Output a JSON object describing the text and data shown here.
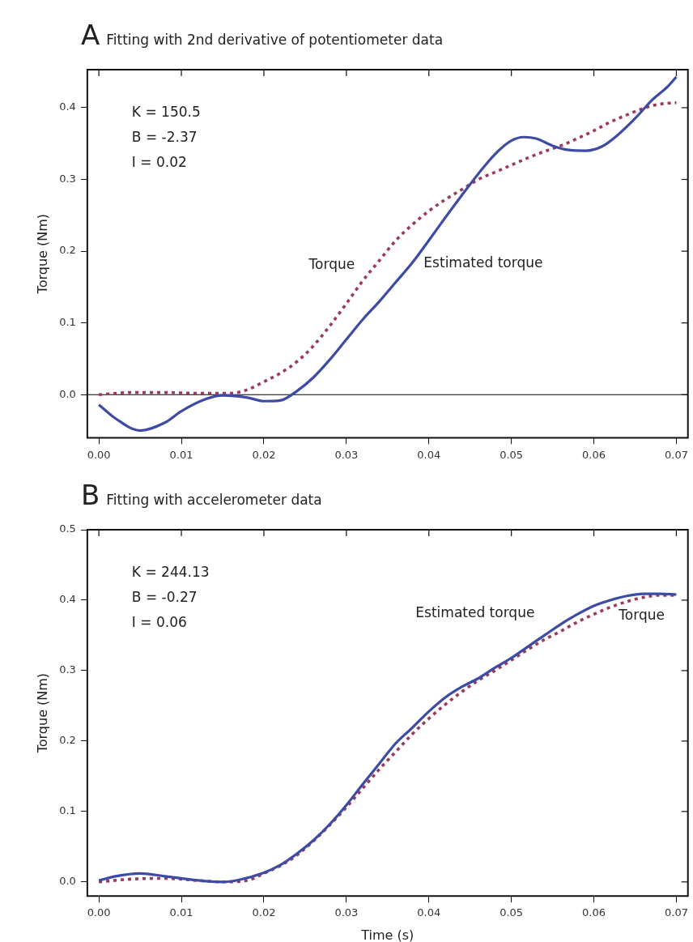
{
  "chart_data": [
    {
      "type": "line",
      "title": "A",
      "subtitle": "Fitting with 2nd derivative of potentiometer data",
      "ylabel": "Torque (Nm)",
      "annotations": [
        "K = 150.5",
        "B = -2.37",
        "I = 0.02"
      ],
      "xlim": [
        -0.0014,
        0.0714
      ],
      "xticks": [
        {
          "value": 0,
          "label": "0.00"
        },
        0.01,
        0.02,
        0.03,
        0.04,
        0.05,
        0.06,
        0.07
      ],
      "ylim": [
        -0.06,
        0.453
      ],
      "yticks": [
        {
          "value": 0,
          "label": "0.0"
        },
        0.1,
        0.2,
        0.3,
        0.4
      ],
      "grid": false,
      "legend": false,
      "marker": "none",
      "ref_lines": [
        {
          "axis": "y",
          "value": 0,
          "color": "#000000"
        }
      ],
      "series": [
        {
          "name": "Estimated torque",
          "color": "#3d4aa6",
          "line_style": "solid",
          "x": [
            0,
            0.002,
            0.005,
            0.008,
            0.01,
            0.013,
            0.015,
            0.018,
            0.02,
            0.022,
            0.024,
            0.026,
            0.028,
            0.03,
            0.032,
            0.034,
            0.036,
            0.038,
            0.04,
            0.042,
            0.044,
            0.046,
            0.048,
            0.05,
            0.0515,
            0.053,
            0.055,
            0.057,
            0.059,
            0.061,
            0.063,
            0.065,
            0.067,
            0.069,
            0.07
          ],
          "values": [
            -0.014,
            -0.033,
            -0.05,
            -0.039,
            -0.023,
            -0.006,
            -0.001,
            -0.004,
            -0.009,
            -0.008,
            0.005,
            0.024,
            0.049,
            0.077,
            0.105,
            0.13,
            0.157,
            0.184,
            0.215,
            0.247,
            0.278,
            0.308,
            0.335,
            0.354,
            0.359,
            0.357,
            0.347,
            0.341,
            0.34,
            0.346,
            0.363,
            0.385,
            0.41,
            0.43,
            0.443
          ]
        },
        {
          "name": "Torque",
          "color": "#9a3a5c",
          "line_style": "dotted",
          "x": [
            0,
            0.004,
            0.008,
            0.012,
            0.016,
            0.018,
            0.02,
            0.022,
            0.024,
            0.026,
            0.028,
            0.03,
            0.032,
            0.034,
            0.036,
            0.038,
            0.04,
            0.042,
            0.044,
            0.046,
            0.048,
            0.05,
            0.052,
            0.054,
            0.056,
            0.058,
            0.06,
            0.062,
            0.064,
            0.066,
            0.068,
            0.07
          ],
          "values": [
            0,
            0.003,
            0.003,
            0.002,
            0.002,
            0.007,
            0.018,
            0.03,
            0.046,
            0.068,
            0.096,
            0.127,
            0.159,
            0.187,
            0.215,
            0.237,
            0.256,
            0.272,
            0.286,
            0.3,
            0.31,
            0.32,
            0.33,
            0.339,
            0.347,
            0.357,
            0.368,
            0.38,
            0.39,
            0.399,
            0.405,
            0.407
          ]
        }
      ]
    },
    {
      "type": "line",
      "title": "B",
      "subtitle": "Fitting with accelerometer data",
      "xlabel": "Time (s)",
      "ylabel": "Torque (Nm)",
      "annotations": [
        "K = 244.13",
        "B = -0.27",
        "I = 0.06"
      ],
      "xlim": [
        -0.0014,
        0.0714
      ],
      "xticks": [
        {
          "value": 0,
          "label": "0.00"
        },
        0.01,
        0.02,
        0.03,
        0.04,
        0.05,
        0.06,
        0.07
      ],
      "ylim": [
        -0.02,
        0.5
      ],
      "yticks": [
        {
          "value": 0,
          "label": "0.0"
        },
        0.1,
        0.2,
        0.3,
        0.4,
        0.5
      ],
      "grid": false,
      "legend": false,
      "marker": "none",
      "series": [
        {
          "name": "Estimated torque",
          "color": "#3d4aa6",
          "line_style": "solid",
          "x": [
            0,
            0.002,
            0.005,
            0.008,
            0.01,
            0.013,
            0.015,
            0.017,
            0.02,
            0.022,
            0.024,
            0.026,
            0.028,
            0.03,
            0.032,
            0.034,
            0.036,
            0.038,
            0.04,
            0.042,
            0.044,
            0.046,
            0.048,
            0.05,
            0.052,
            0.054,
            0.056,
            0.058,
            0.06,
            0.062,
            0.064,
            0.066,
            0.068,
            0.07
          ],
          "values": [
            0.002,
            0.008,
            0.012,
            0.008,
            0.005,
            0.001,
            0,
            0.003,
            0.013,
            0.024,
            0.04,
            0.059,
            0.082,
            0.109,
            0.139,
            0.168,
            0.197,
            0.219,
            0.242,
            0.262,
            0.277,
            0.289,
            0.304,
            0.318,
            0.334,
            0.35,
            0.366,
            0.38,
            0.392,
            0.4,
            0.406,
            0.409,
            0.409,
            0.408
          ]
        },
        {
          "name": "Torque",
          "color": "#9a3a5c",
          "line_style": "dotted",
          "x": [
            0,
            0.004,
            0.008,
            0.012,
            0.015,
            0.018,
            0.02,
            0.022,
            0.024,
            0.026,
            0.028,
            0.03,
            0.032,
            0.034,
            0.036,
            0.038,
            0.04,
            0.042,
            0.044,
            0.046,
            0.048,
            0.05,
            0.052,
            0.054,
            0.056,
            0.058,
            0.06,
            0.062,
            0.064,
            0.066,
            0.068,
            0.07
          ],
          "values": [
            0,
            0.004,
            0.005,
            0.002,
            0,
            0.002,
            0.012,
            0.023,
            0.038,
            0.058,
            0.081,
            0.106,
            0.133,
            0.16,
            0.185,
            0.21,
            0.232,
            0.252,
            0.27,
            0.286,
            0.3,
            0.315,
            0.33,
            0.344,
            0.356,
            0.369,
            0.38,
            0.39,
            0.398,
            0.404,
            0.407,
            0.407
          ]
        }
      ]
    }
  ]
}
